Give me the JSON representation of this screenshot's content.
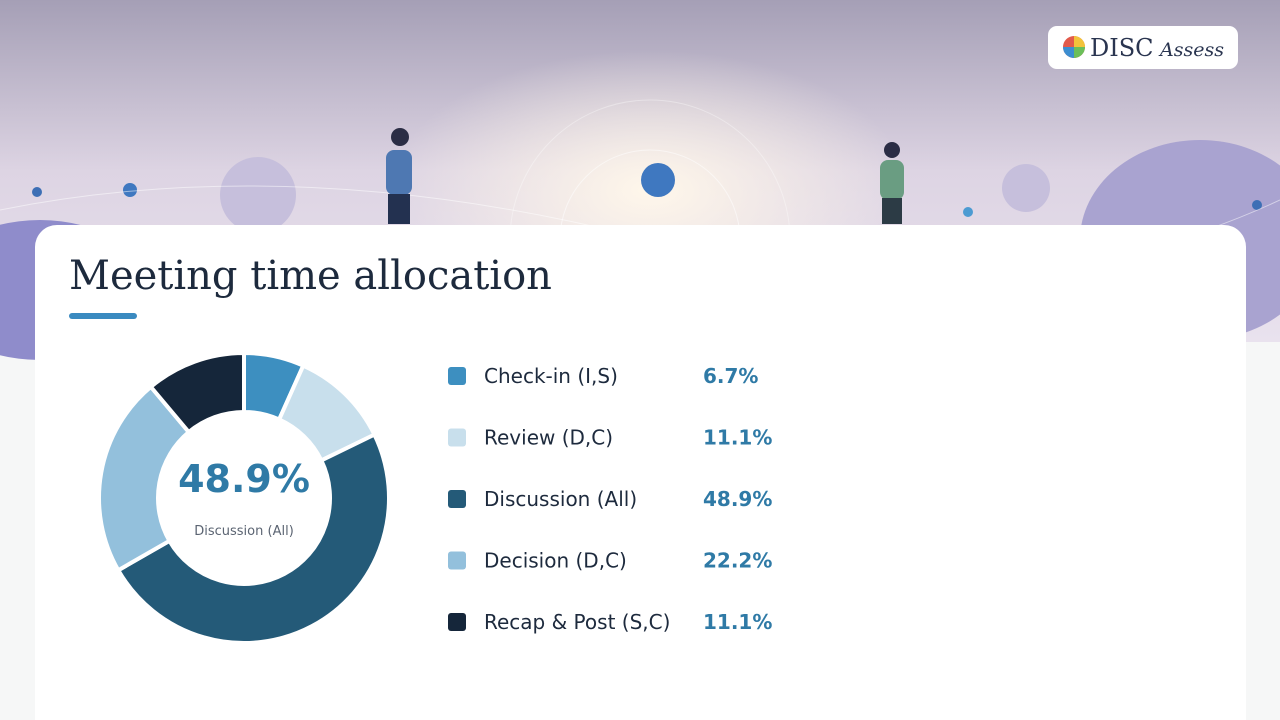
{
  "brand": {
    "name": "DISC",
    "suffix": "Assess"
  },
  "chart_data": {
    "type": "donut",
    "title": "Meeting time allocation",
    "categories": [
      "Check-in (I,S)",
      "Review (D,C)",
      "Discussion (All)",
      "Decision (D,C)",
      "Recap & Post (S,C)"
    ],
    "values": [
      6.7,
      11.1,
      48.9,
      22.2,
      11.1
    ],
    "value_labels": [
      "6.7%",
      "11.1%",
      "48.9%",
      "22.2%",
      "11.1%"
    ],
    "colors": [
      "#3d8fc0",
      "#c8dfec",
      "#245a78",
      "#93c0dc",
      "#15263a"
    ]
  }
}
